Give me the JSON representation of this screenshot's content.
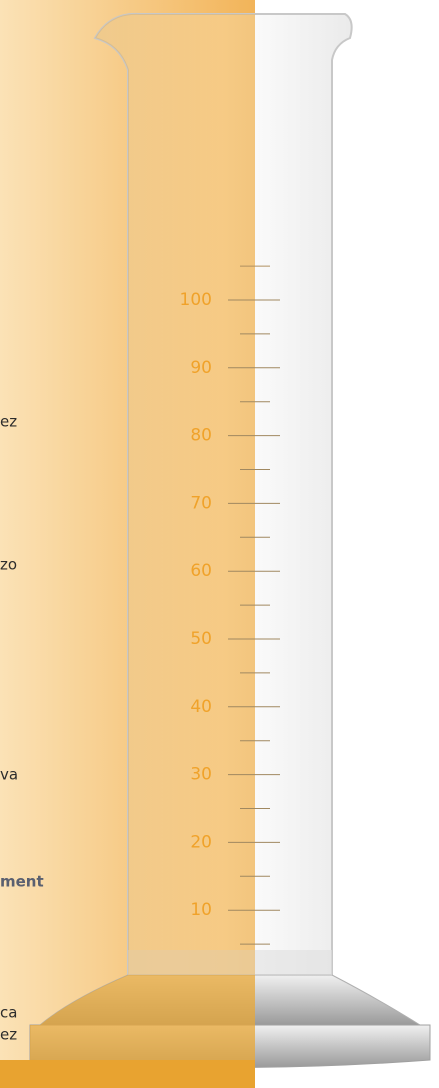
{
  "scale": {
    "labels": [
      100,
      90,
      80,
      70,
      60,
      50,
      40,
      30,
      20,
      10
    ]
  },
  "side_texts": [
    "ez",
    "zo",
    "va",
    "ment",
    "ca",
    "ez"
  ]
}
